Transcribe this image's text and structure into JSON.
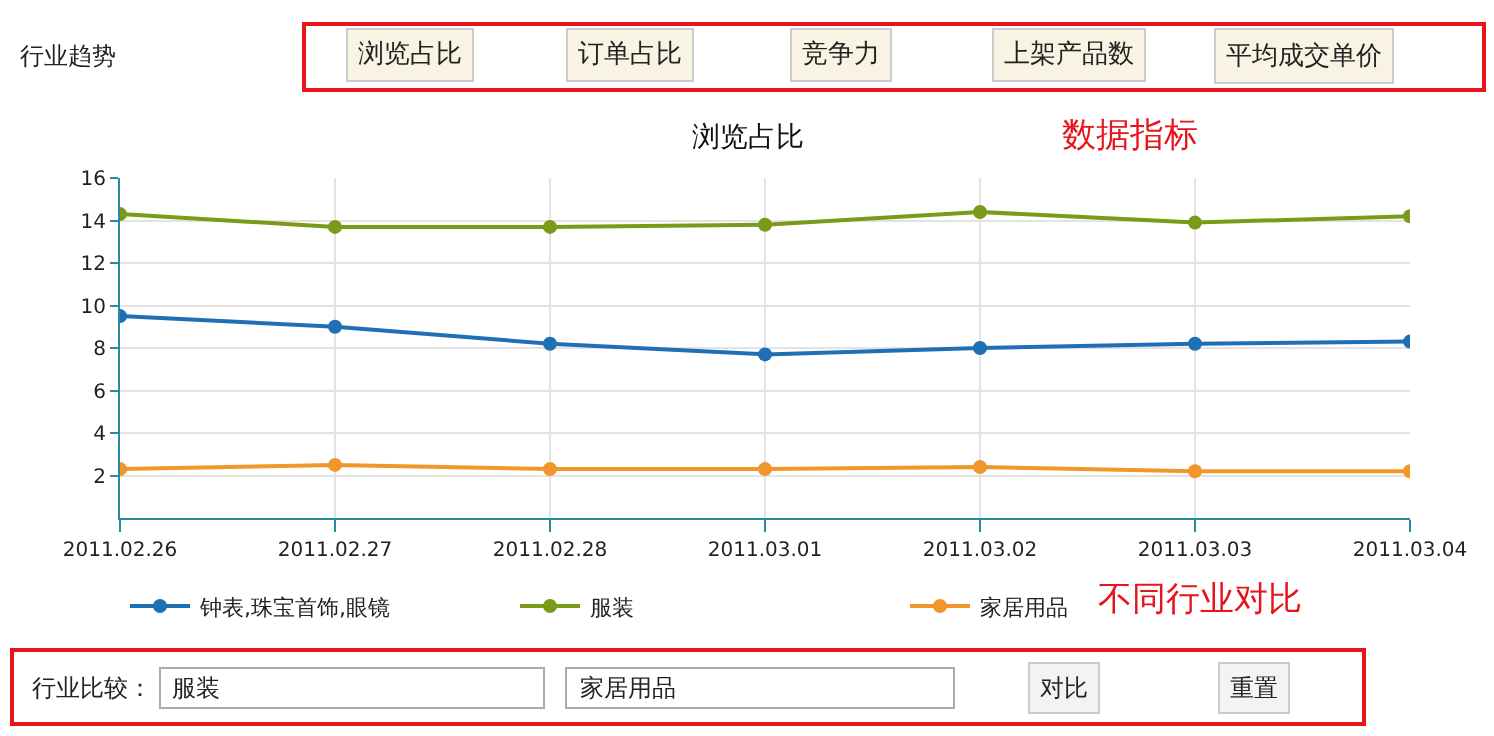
{
  "chart_data": {
    "type": "line",
    "title": "浏览占比",
    "categories": [
      "2011.02.26",
      "2011.02.27",
      "2011.02.28",
      "2011.03.01",
      "2011.03.02",
      "2011.03.03",
      "2011.03.04"
    ],
    "series": [
      {
        "name": "钟表,珠宝首饰,眼镜",
        "color": "#1f6fb4",
        "values": [
          9.5,
          9.0,
          8.2,
          7.7,
          8.0,
          8.2,
          8.3
        ]
      },
      {
        "name": "服装",
        "color": "#7a9a1a",
        "values": [
          14.3,
          13.7,
          13.7,
          13.8,
          14.4,
          13.9,
          14.2
        ]
      },
      {
        "name": "家居用品",
        "color": "#f0962a",
        "values": [
          2.3,
          2.5,
          2.3,
          2.3,
          2.4,
          2.2,
          2.2
        ]
      }
    ],
    "ylim": [
      0,
      16
    ],
    "yticks": [
      2,
      4,
      6,
      8,
      10,
      12,
      14,
      16
    ],
    "grid": true,
    "legend": "bottom",
    "marker": "circle",
    "line_style": "solid",
    "annotations": [
      "行业趋势",
      "浏览占比",
      "订单占比",
      "竞争力",
      "上架产品数",
      "平均成交单价",
      "数据指标",
      "不同行业对比",
      "行业比较：",
      "服装",
      "家居用品",
      "对比",
      "重置"
    ]
  }
}
